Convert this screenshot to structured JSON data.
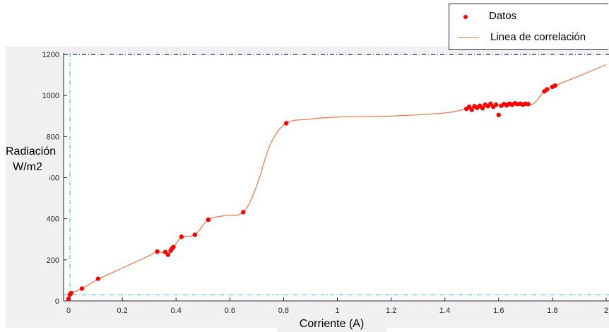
{
  "chart_data": {
    "type": "scatter",
    "title": "",
    "xlabel": "Corriente (A)",
    "ylabel_line1": "Radiación",
    "ylabel_line2": "W/m2",
    "xlim": [
      0,
      2
    ],
    "ylim": [
      0,
      1200
    ],
    "xticks": [
      "0",
      "0.2",
      "0.4",
      "0.6",
      "0.8",
      "1",
      "1.2",
      "1.4",
      "1.6",
      "1.8",
      "2"
    ],
    "yticks": [
      "0",
      "200",
      "400",
      "600",
      "800",
      "1000",
      "1200"
    ],
    "grid": false,
    "legend_position": "top-right",
    "legend": [
      "Datos",
      "Linea de correlación"
    ],
    "reference_lines": {
      "horizontal": [
        30,
        1200
      ],
      "vertical": [
        0.005
      ]
    },
    "colors": {
      "datos": "#ff0000",
      "correlacion": "#ee7d4c",
      "ref_cyan": "#4fd1d9",
      "ref_navy": "#1a1a8c"
    },
    "series": [
      {
        "name": "Datos",
        "kind": "markers",
        "points": [
          [
            0.0,
            10
          ],
          [
            0.005,
            30
          ],
          [
            0.01,
            38
          ],
          [
            0.05,
            60
          ],
          [
            0.11,
            108
          ],
          [
            0.33,
            240
          ],
          [
            0.36,
            238
          ],
          [
            0.37,
            225
          ],
          [
            0.38,
            245
          ],
          [
            0.385,
            255
          ],
          [
            0.39,
            262
          ],
          [
            0.42,
            312
          ],
          [
            0.47,
            322
          ],
          [
            0.52,
            395
          ],
          [
            0.65,
            432
          ],
          [
            0.81,
            865
          ],
          [
            1.48,
            935
          ],
          [
            1.49,
            945
          ],
          [
            1.5,
            930
          ],
          [
            1.51,
            948
          ],
          [
            1.52,
            940
          ],
          [
            1.53,
            950
          ],
          [
            1.54,
            938
          ],
          [
            1.55,
            955
          ],
          [
            1.56,
            948
          ],
          [
            1.57,
            960
          ],
          [
            1.58,
            945
          ],
          [
            1.59,
            955
          ],
          [
            1.6,
            905
          ],
          [
            1.61,
            950
          ],
          [
            1.62,
            958
          ],
          [
            1.63,
            952
          ],
          [
            1.64,
            960
          ],
          [
            1.65,
            955
          ],
          [
            1.66,
            962
          ],
          [
            1.67,
            958
          ],
          [
            1.68,
            960
          ],
          [
            1.69,
            955
          ],
          [
            1.7,
            960
          ],
          [
            1.71,
            958
          ],
          [
            1.77,
            1020
          ],
          [
            1.78,
            1030
          ],
          [
            1.8,
            1042
          ],
          [
            1.81,
            1048
          ]
        ]
      },
      {
        "name": "Linea de correlación",
        "kind": "line",
        "points": [
          [
            0.0,
            0
          ],
          [
            0.01,
            35
          ],
          [
            0.05,
            60
          ],
          [
            0.11,
            105
          ],
          [
            0.2,
            160
          ],
          [
            0.3,
            220
          ],
          [
            0.33,
            240
          ],
          [
            0.37,
            228
          ],
          [
            0.39,
            258
          ],
          [
            0.42,
            310
          ],
          [
            0.47,
            322
          ],
          [
            0.52,
            395
          ],
          [
            0.58,
            415
          ],
          [
            0.65,
            432
          ],
          [
            0.7,
            560
          ],
          [
            0.75,
            760
          ],
          [
            0.81,
            865
          ],
          [
            0.9,
            885
          ],
          [
            1.0,
            895
          ],
          [
            1.2,
            900
          ],
          [
            1.4,
            915
          ],
          [
            1.48,
            935
          ],
          [
            1.55,
            955
          ],
          [
            1.6,
            950
          ],
          [
            1.7,
            958
          ],
          [
            1.73,
            960
          ],
          [
            1.77,
            1020
          ],
          [
            1.81,
            1048
          ],
          [
            1.9,
            1095
          ],
          [
            2.0,
            1150
          ]
        ]
      }
    ]
  }
}
